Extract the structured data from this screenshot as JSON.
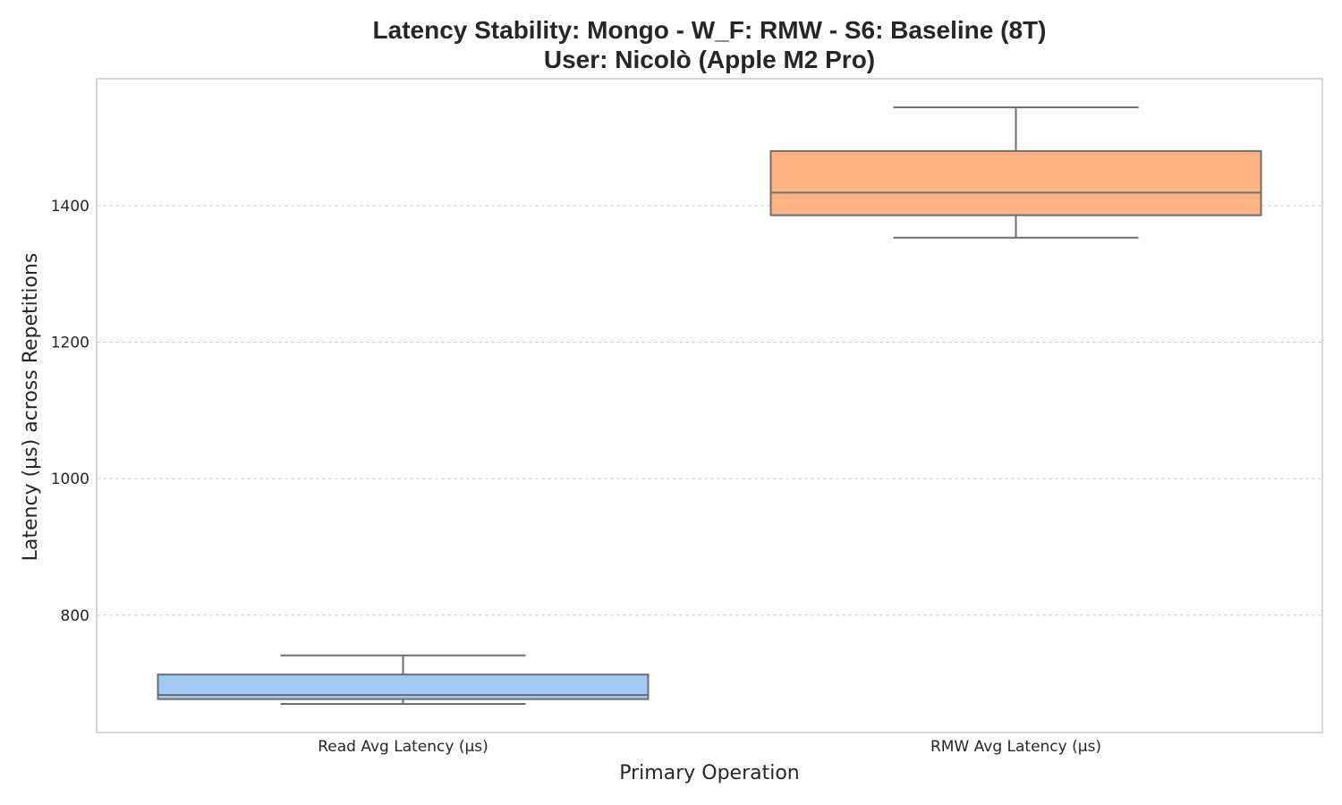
{
  "chart_data": {
    "type": "box",
    "title_line1": "Latency Stability: Mongo - W_F: RMW - S6: Baseline (8T)",
    "title_line2": "User: Nicolò (Apple M2 Pro)",
    "xlabel": "Primary Operation",
    "ylabel": "Latency (µs) across Repetitions",
    "ylim": [
      628,
      1586
    ],
    "yticks": [
      800,
      1000,
      1200,
      1400
    ],
    "grid": true,
    "categories": [
      "Read Avg Latency (µs)",
      "RMW Avg Latency (µs)"
    ],
    "boxes": [
      {
        "name": "Read Avg Latency (µs)",
        "whisker_low": 670,
        "q1": 677,
        "median": 683,
        "q3": 713,
        "whisker_high": 741,
        "color": "#a1c9f4"
      },
      {
        "name": "RMW Avg Latency (µs)",
        "whisker_low": 1353,
        "q1": 1386,
        "median": 1419,
        "q3": 1480,
        "whisker_high": 1544,
        "color": "#ffb482"
      }
    ]
  },
  "colors": {
    "grid": "#cccccc",
    "frame": "#cccccc",
    "box_edge": "#6e6e6e",
    "text": "#262626"
  }
}
